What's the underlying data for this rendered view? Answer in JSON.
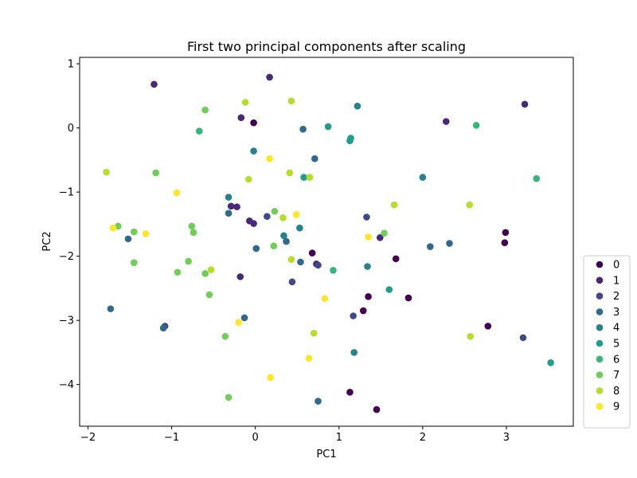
{
  "chart_data": {
    "type": "scatter",
    "title": "First two principal components after scaling",
    "xlabel": "PC1",
    "ylabel": "PC2",
    "xlim": [
      -2.1,
      3.8
    ],
    "ylim": [
      -4.65,
      1.1
    ],
    "xticks": [
      -2,
      -1,
      0,
      1,
      2,
      3
    ],
    "yticks": [
      1,
      0,
      -1,
      -2,
      -3,
      -4
    ],
    "grid": false,
    "legend_position": "lower-right outside",
    "colors": {
      "0": "#440154",
      "1": "#482878",
      "2": "#3e4989",
      "3": "#31688e",
      "4": "#26828e",
      "5": "#1f9e89",
      "6": "#35b779",
      "7": "#6ece58",
      "8": "#b5de2b",
      "9": "#fde725"
    },
    "series": [
      {
        "name": "0",
        "points": [
          [
            -0.02,
            0.08
          ],
          [
            0.68,
            -1.95
          ],
          [
            2.99,
            -1.63
          ],
          [
            2.98,
            -1.79
          ],
          [
            1.68,
            -2.04
          ],
          [
            1.35,
            -2.63
          ],
          [
            1.83,
            -2.65
          ],
          [
            1.29,
            -2.85
          ],
          [
            2.78,
            -3.09
          ],
          [
            1.13,
            -4.12
          ],
          [
            1.45,
            -4.39
          ]
        ]
      },
      {
        "name": "1",
        "points": [
          [
            -1.21,
            0.68
          ],
          [
            0.17,
            0.79
          ],
          [
            -0.17,
            0.16
          ],
          [
            -0.22,
            -1.23
          ],
          [
            -0.29,
            -1.22
          ],
          [
            -0.07,
            -1.45
          ],
          [
            -0.02,
            -1.49
          ],
          [
            1.49,
            -1.71
          ],
          [
            0.73,
            -2.12
          ],
          [
            -0.18,
            -2.32
          ],
          [
            2.28,
            0.1
          ],
          [
            3.22,
            0.37
          ]
        ]
      },
      {
        "name": "2",
        "points": [
          [
            0.14,
            -1.38
          ],
          [
            1.33,
            -1.39
          ],
          [
            0.75,
            -2.14
          ],
          [
            0.44,
            -2.4
          ],
          [
            1.17,
            -2.93
          ],
          [
            3.2,
            -3.27
          ],
          [
            -1.08,
            -3.09
          ]
        ]
      },
      {
        "name": "3",
        "points": [
          [
            0.57,
            -0.02
          ],
          [
            0.71,
            -0.48
          ],
          [
            -0.32,
            -1.33
          ],
          [
            -1.52,
            -1.73
          ],
          [
            0.37,
            -1.77
          ],
          [
            2.32,
            -1.8
          ],
          [
            2.09,
            -1.85
          ],
          [
            0.01,
            -1.88
          ],
          [
            0.54,
            -2.09
          ],
          [
            -1.73,
            -2.82
          ],
          [
            -0.13,
            -2.96
          ],
          [
            -1.1,
            -3.12
          ],
          [
            0.75,
            -4.26
          ]
        ]
      },
      {
        "name": "4",
        "points": [
          [
            1.22,
            0.34
          ],
          [
            -0.02,
            -0.36
          ],
          [
            2.0,
            -0.77
          ],
          [
            -0.32,
            -1.08
          ],
          [
            0.34,
            -1.68
          ],
          [
            0.53,
            -1.56
          ],
          [
            1.34,
            -2.16
          ],
          [
            1.18,
            -3.5
          ]
        ]
      },
      {
        "name": "5",
        "points": [
          [
            0.87,
            0.02
          ],
          [
            1.13,
            -0.2
          ],
          [
            1.14,
            -0.16
          ],
          [
            0.58,
            -0.77
          ],
          [
            1.6,
            -2.52
          ],
          [
            3.53,
            -3.66
          ]
        ]
      },
      {
        "name": "6",
        "points": [
          [
            -0.67,
            -0.05
          ],
          [
            2.64,
            0.04
          ],
          [
            3.36,
            -0.79
          ],
          [
            0.93,
            -2.22
          ]
        ]
      },
      {
        "name": "7",
        "points": [
          [
            -0.6,
            0.28
          ],
          [
            -1.19,
            -0.7
          ],
          [
            -1.64,
            -1.53
          ],
          [
            -0.76,
            -1.53
          ],
          [
            -1.45,
            -1.62
          ],
          [
            -0.74,
            -1.63
          ],
          [
            0.23,
            -1.3
          ],
          [
            1.54,
            -1.64
          ],
          [
            0.22,
            -1.84
          ],
          [
            -1.45,
            -2.1
          ],
          [
            -0.8,
            -2.08
          ],
          [
            -0.93,
            -2.25
          ],
          [
            -0.6,
            -2.27
          ],
          [
            -0.55,
            -2.6
          ],
          [
            -0.36,
            -3.25
          ],
          [
            -0.32,
            -4.2
          ]
        ]
      },
      {
        "name": "8",
        "points": [
          [
            -0.12,
            0.4
          ],
          [
            0.43,
            0.42
          ],
          [
            -1.78,
            -0.69
          ],
          [
            -0.08,
            -0.8
          ],
          [
            0.41,
            -0.7
          ],
          [
            0.65,
            -0.77
          ],
          [
            0.33,
            -1.4
          ],
          [
            1.66,
            -1.2
          ],
          [
            2.56,
            -1.2
          ],
          [
            0.43,
            -2.05
          ],
          [
            -0.53,
            -2.21
          ],
          [
            0.7,
            -3.2
          ],
          [
            2.57,
            -3.25
          ]
        ]
      },
      {
        "name": "9",
        "points": [
          [
            0.17,
            -0.48
          ],
          [
            -0.94,
            -1.01
          ],
          [
            -1.7,
            -1.56
          ],
          [
            -1.31,
            -1.65
          ],
          [
            0.49,
            -1.35
          ],
          [
            1.35,
            -1.7
          ],
          [
            0.83,
            -2.66
          ],
          [
            -0.2,
            -3.03
          ],
          [
            0.64,
            -3.59
          ],
          [
            0.18,
            -3.89
          ]
        ]
      }
    ]
  }
}
